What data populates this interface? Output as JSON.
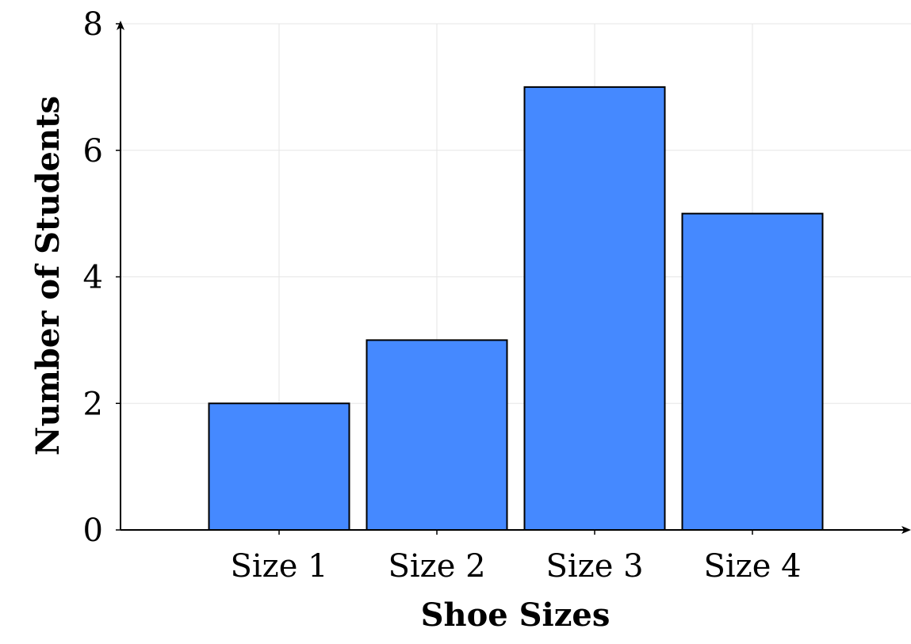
{
  "chart_data": {
    "type": "bar",
    "categories": [
      "Size 1",
      "Size 2",
      "Size 3",
      "Size 4"
    ],
    "values": [
      2,
      3,
      7,
      5
    ],
    "xlabel": "Shoe Sizes",
    "ylabel": "Number of Students",
    "ylim": [
      0,
      8
    ],
    "yticks": [
      0,
      2,
      4,
      6,
      8
    ],
    "grid": true,
    "colors": {
      "bar_fill": "#4589ff",
      "bar_stroke": "#000000",
      "grid": "#e6e6e6",
      "axis": "#000000"
    }
  }
}
